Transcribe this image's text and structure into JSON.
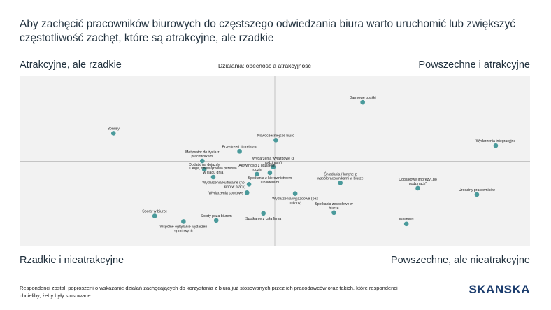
{
  "headline": "Aby zachęcić pracowników biurowych do częstszego odwiedzania biura warto uruchomić lub zwiększyć częstotliwość zachęt, które są atrakcyjne, ale rzadkie",
  "quadrants": {
    "top_left": "Atrakcyjne, ale rzadkie",
    "top_right": "Powszechne i atrakcyjne",
    "bottom_left": "Rzadkie i nieatrakcyjne",
    "bottom_right": "Powszechne, ale nieatrakcyjne"
  },
  "footnote": "Respondenci zostali poproszeni o wskazanie działań zachęcających do korzystania z biura już stosowanych przez ich pracodawców oraz takich, które respondenci chcieliby, żeby były stosowane.",
  "logo": "SKANSKA",
  "colors": {
    "point": "#4a9a9b",
    "plot_bg": "#f2f2f2",
    "axis": "#b5b5b5",
    "logo": "#1c3d6e"
  },
  "chart_data": {
    "type": "scatter",
    "title": "Działania: obecność a atrakcyjność",
    "xlabel": "",
    "ylabel": "",
    "xlim": [
      0,
      100
    ],
    "ylim": [
      0,
      100
    ],
    "x_divider": 50,
    "y_divider": 50,
    "grid": false,
    "points": [
      {
        "label": "Darmowe posiłki",
        "x": 67.7,
        "y": 87.5,
        "label_pos": "above"
      },
      {
        "label": "Wydarzenia integracyjne",
        "x": 94.5,
        "y": 59.9,
        "label_pos": "above"
      },
      {
        "label": "Bonusy",
        "x": 17.5,
        "y": 67.8,
        "label_pos": "above"
      },
      {
        "label": "Nowocześniejsze biuro",
        "x": 50.2,
        "y": 63.4,
        "label_pos": "above"
      },
      {
        "label": "Przestrzeń do relaksu",
        "x": 42.9,
        "y": 56.3,
        "label_pos": "above"
      },
      {
        "label": "Dodatki na dojazdy",
        "x": 35.8,
        "y": 44.9,
        "label_pos": "above"
      },
      {
        "label": "Wydarzenia wyjazdowe (z rodzinami)",
        "x": 49.7,
        "y": 46.3,
        "label_pos": "above"
      },
      {
        "label": "Aktywności z udziałem rodzin",
        "x": 46.4,
        "y": 41.8,
        "label_pos": "above"
      },
      {
        "label": "Spotkania z kierownictwem lub liderami",
        "x": 49.0,
        "y": 42.7,
        "label_pos": "below"
      },
      {
        "label": "Motywator do życia z pracownikami",
        "x": 35.4,
        "y": 50.2,
        "label_pos": "above"
      },
      {
        "label": "Długa, obowiązkowa przerwa w ciągu dnia",
        "x": 37.6,
        "y": 40.0,
        "label_pos": "above"
      },
      {
        "label": "Śniadania / lunche z współpracownikami w biurze",
        "x": 63.2,
        "y": 36.3,
        "label_pos": "above"
      },
      {
        "label": "Wydarzenia kulturalne (np. kino w pracy)",
        "x": 44.8,
        "y": 35.4,
        "label_pos": "left"
      },
      {
        "label": "Wydarzenia sportowe",
        "x": 44.4,
        "y": 30.1,
        "label_pos": "left"
      },
      {
        "label": "Wydarzenia wyjazdowe (bez rodziny)",
        "x": 54.1,
        "y": 29.5,
        "label_pos": "below"
      },
      {
        "label": "Dodatkowe imprezy „po godzinach”",
        "x": 78.8,
        "y": 32.9,
        "label_pos": "above"
      },
      {
        "label": "Urodziny pracowników",
        "x": 90.7,
        "y": 28.9,
        "label_pos": "above"
      },
      {
        "label": "Sporty w biurze",
        "x": 25.8,
        "y": 15.3,
        "label_pos": "above"
      },
      {
        "label": "Sporty poza biurem",
        "x": 38.2,
        "y": 12.5,
        "label_pos": "above"
      },
      {
        "label": "Wspólne oglądanie wydarzeń sportowych",
        "x": 31.6,
        "y": 11.8,
        "label_pos": "below"
      },
      {
        "label": "Spotkanie z całą firmą",
        "x": 47.7,
        "y": 17.0,
        "label_pos": "below"
      },
      {
        "label": "Spotkania zespołowe w biurze",
        "x": 61.9,
        "y": 17.4,
        "label_pos": "above"
      },
      {
        "label": "Wellness",
        "x": 76.5,
        "y": 10.3,
        "label_pos": "above"
      }
    ]
  }
}
